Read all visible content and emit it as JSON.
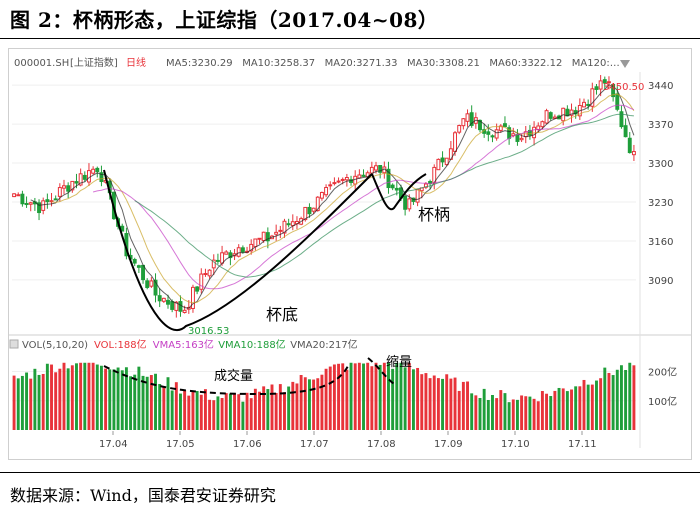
{
  "figure_title": "图 2：杯柄形态，上证综指（2017.04~08）",
  "source_note": "数据来源：Wind，国泰君安证券研究",
  "chart_data": [
    {
      "type": "candlestick",
      "title": "",
      "header": {
        "ticker": "000001.SH",
        "index_name": "[上证指数]",
        "period": "日线",
        "ma_labels": [
          "MA5:3230.29",
          "MA10:3258.37",
          "MA20:3271.33",
          "MA30:3308.21",
          "MA60:3322.12",
          "MA120:…"
        ]
      },
      "y_ticks": [
        3090,
        3160,
        3230,
        3300,
        3370,
        3440
      ],
      "ylim": [
        3000,
        3460
      ],
      "x_ticks": [
        "17.04",
        "17.05",
        "17.06",
        "17.07",
        "17.08",
        "17.09",
        "17.10",
        "17.11"
      ],
      "annotations": {
        "high": "3450.50",
        "low": "3016.53",
        "cup_label": "杯底",
        "handle_label": "杯柄"
      },
      "close_path": [
        [
          "17.03",
          3245
        ],
        [
          "17.04",
          3220
        ],
        [
          "17.04",
          3265
        ],
        [
          "17.04",
          3295
        ],
        [
          "17.05",
          3140
        ],
        [
          "17.05",
          3065
        ],
        [
          "17.05",
          3035
        ],
        [
          "17.06",
          3120
        ],
        [
          "17.06",
          3150
        ],
        [
          "17.06",
          3165
        ],
        [
          "17.07",
          3200
        ],
        [
          "17.07",
          3240
        ],
        [
          "17.07",
          3280
        ],
        [
          "17.08",
          3290
        ],
        [
          "17.08",
          3220
        ],
        [
          "17.08",
          3290
        ],
        [
          "17.09",
          3380
        ],
        [
          "17.09",
          3360
        ],
        [
          "17.10",
          3350
        ],
        [
          "17.10",
          3390
        ],
        [
          "17.11",
          3400
        ],
        [
          "17.11",
          3450
        ],
        [
          "17.11",
          3310
        ]
      ],
      "colors": {
        "up": "#e8333a",
        "down": "#1f9e3a",
        "ma5": "#222222",
        "ma10": "#c9a227",
        "ma20": "#c43dc4",
        "ma30": "#2e8b57",
        "ma60": "#888888",
        "ma120": "#4a7fc1"
      }
    },
    {
      "type": "bar",
      "title": "",
      "header": {
        "indicator": "VOL(5,10,20)",
        "labels": [
          "VOL:188亿",
          "VMA5:163亿",
          "VMA10:188亿",
          "VMA20:217亿"
        ]
      },
      "y_ticks": [
        "100亿",
        "200亿"
      ],
      "ylim": [
        0,
        260
      ],
      "annotations": {
        "volume_label": "成交量",
        "shrink_label": "缩量"
      },
      "colors": {
        "up": "#e8333a",
        "down": "#1f9e3a"
      }
    }
  ]
}
